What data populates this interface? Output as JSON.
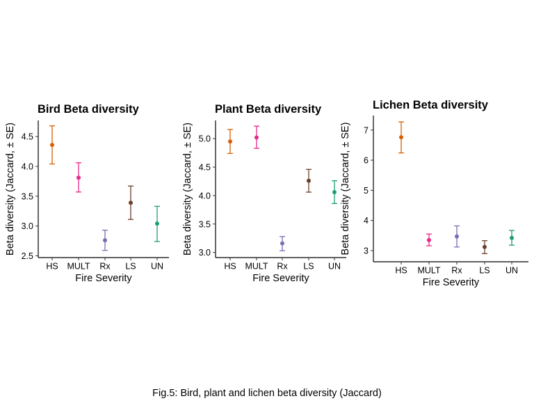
{
  "chart_data": [
    {
      "type": "scatter",
      "title": "Bird Beta diversity",
      "xlabel": "Fire Severity",
      "ylabel": "Beta diversity (Jaccard, ± SE)",
      "categories": [
        "HS",
        "MULT",
        "Rx",
        "LS",
        "UN"
      ],
      "values": [
        4.36,
        3.81,
        2.76,
        3.39,
        3.04
      ],
      "lower": [
        4.04,
        3.57,
        2.59,
        3.11,
        2.74
      ],
      "upper": [
        4.68,
        4.06,
        2.93,
        3.67,
        3.33
      ],
      "ylim": [
        2.47,
        4.77
      ],
      "yticks": [
        2.5,
        3.0,
        3.5,
        4.0,
        4.5
      ],
      "ytick_labels": [
        "2.5",
        "3.0",
        "3.5",
        "4.0",
        "4.5"
      ]
    },
    {
      "type": "scatter",
      "title": "Plant Beta diversity",
      "xlabel": "Fire Severity",
      "ylabel": "Beta diversity (Jaccard, ± SE)",
      "categories": [
        "HS",
        "MULT",
        "Rx",
        "LS",
        "UN"
      ],
      "values": [
        4.95,
        5.02,
        3.16,
        4.26,
        4.06
      ],
      "lower": [
        4.74,
        4.83,
        3.03,
        4.06,
        3.86
      ],
      "upper": [
        5.16,
        5.22,
        3.28,
        4.46,
        4.26
      ],
      "ylim": [
        2.91,
        5.32
      ],
      "yticks": [
        3.0,
        3.5,
        4.0,
        4.5,
        5.0
      ],
      "ytick_labels": [
        "3.0",
        "3.5",
        "4.0",
        "4.5",
        "5.0"
      ]
    },
    {
      "type": "scatter",
      "title": "Lichen Beta diversity",
      "xlabel": "Fire Severity",
      "ylabel": "Beta diversity (Jaccard, ± SE)",
      "categories": [
        "HS",
        "MULT",
        "Rx",
        "LS",
        "UN"
      ],
      "values": [
        6.76,
        3.35,
        3.47,
        3.12,
        3.42
      ],
      "lower": [
        6.24,
        3.16,
        3.12,
        2.9,
        3.18
      ],
      "upper": [
        7.27,
        3.55,
        3.82,
        3.33,
        3.67
      ],
      "ylim": [
        2.63,
        7.48
      ],
      "yticks": [
        3,
        4,
        5,
        6,
        7
      ],
      "ytick_labels": [
        "3",
        "4",
        "5",
        "6",
        "7"
      ]
    }
  ],
  "colors": {
    "HS": "#D95F02",
    "MULT": "#E7298A",
    "Rx": "#7570B3",
    "LS": "#6B3F2A",
    "UN": "#1B9E77"
  },
  "caption": "Fig.5: Bird, plant and lichen beta diversity (Jaccard)"
}
